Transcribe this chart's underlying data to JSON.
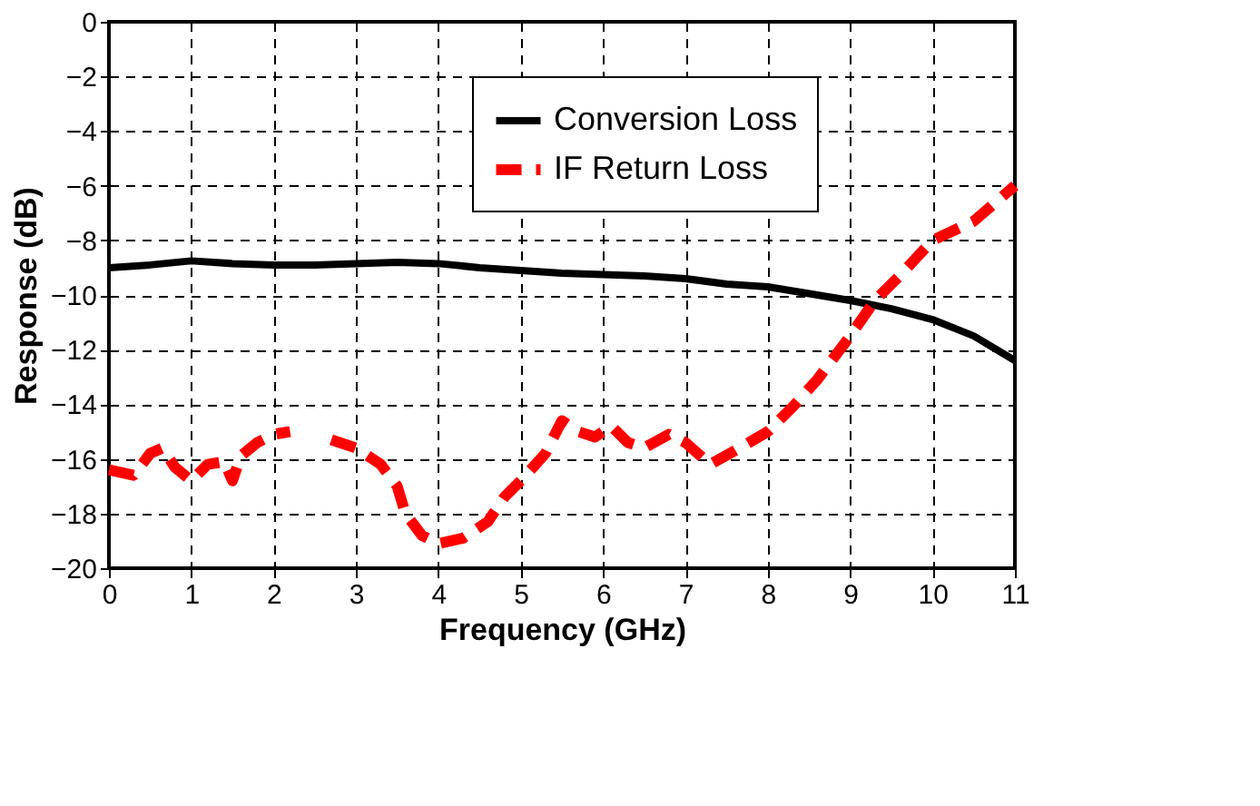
{
  "chart_data": {
    "type": "line",
    "xlabel": "Frequency (GHz)",
    "ylabel": "Response (dB)",
    "xlim": [
      0,
      11
    ],
    "ylim": [
      -20,
      0
    ],
    "xticks": [
      0,
      1,
      2,
      3,
      4,
      5,
      6,
      7,
      8,
      9,
      10,
      11
    ],
    "yticks": [
      -20,
      -18,
      -16,
      -14,
      -12,
      -10,
      -8,
      -6,
      -4,
      -2,
      0
    ],
    "grid": true,
    "legend": "top",
    "marker": "none",
    "series": [
      {
        "name": "Conversion Loss",
        "color": "#000000",
        "line_style": "solid",
        "x": [
          0,
          0.5,
          1,
          1.5,
          2,
          2.5,
          3,
          3.5,
          4,
          4.5,
          5,
          5.5,
          6,
          6.5,
          7,
          7.5,
          8,
          8.5,
          9,
          9.5,
          10,
          10.5,
          11
        ],
        "values": [
          -9.0,
          -8.9,
          -8.75,
          -8.85,
          -8.9,
          -8.9,
          -8.85,
          -8.8,
          -8.85,
          -9.0,
          -9.1,
          -9.2,
          -9.25,
          -9.3,
          -9.4,
          -9.6,
          -9.7,
          -9.95,
          -10.2,
          -10.5,
          -10.9,
          -11.5,
          -12.4
        ]
      },
      {
        "name": "IF Return Loss",
        "color": "#ff0000",
        "line_style": "dashed",
        "x": [
          0,
          0.3,
          0.5,
          0.65,
          0.8,
          1.0,
          1.2,
          1.4,
          1.5,
          1.6,
          1.8,
          2.0,
          2.2,
          2.5,
          2.7,
          3.0,
          3.3,
          3.5,
          3.6,
          3.8,
          4.0,
          4.3,
          4.6,
          4.8,
          5.0,
          5.3,
          5.5,
          5.7,
          5.9,
          6.1,
          6.3,
          6.5,
          6.8,
          7.0,
          7.3,
          7.6,
          8.0,
          8.3,
          8.6,
          9.0,
          9.3,
          9.6,
          10.0,
          10.5,
          11
        ],
        "values": [
          -16.4,
          -16.6,
          -15.8,
          -15.6,
          -16.3,
          -16.8,
          -16.2,
          -16.1,
          -16.8,
          -15.9,
          -15.4,
          -15.1,
          -15.0,
          null,
          -15.3,
          -15.6,
          -16.2,
          -17.0,
          -18.0,
          -18.8,
          -19.1,
          -18.9,
          -18.3,
          -17.4,
          -16.8,
          -15.8,
          -14.6,
          -15.0,
          -15.2,
          -14.8,
          -15.4,
          -15.6,
          -15.1,
          -15.4,
          -16.2,
          -15.7,
          -15.0,
          -14.1,
          -13.1,
          -11.5,
          -10.2,
          -9.3,
          -8.0,
          -7.3,
          -6.0
        ]
      }
    ]
  }
}
